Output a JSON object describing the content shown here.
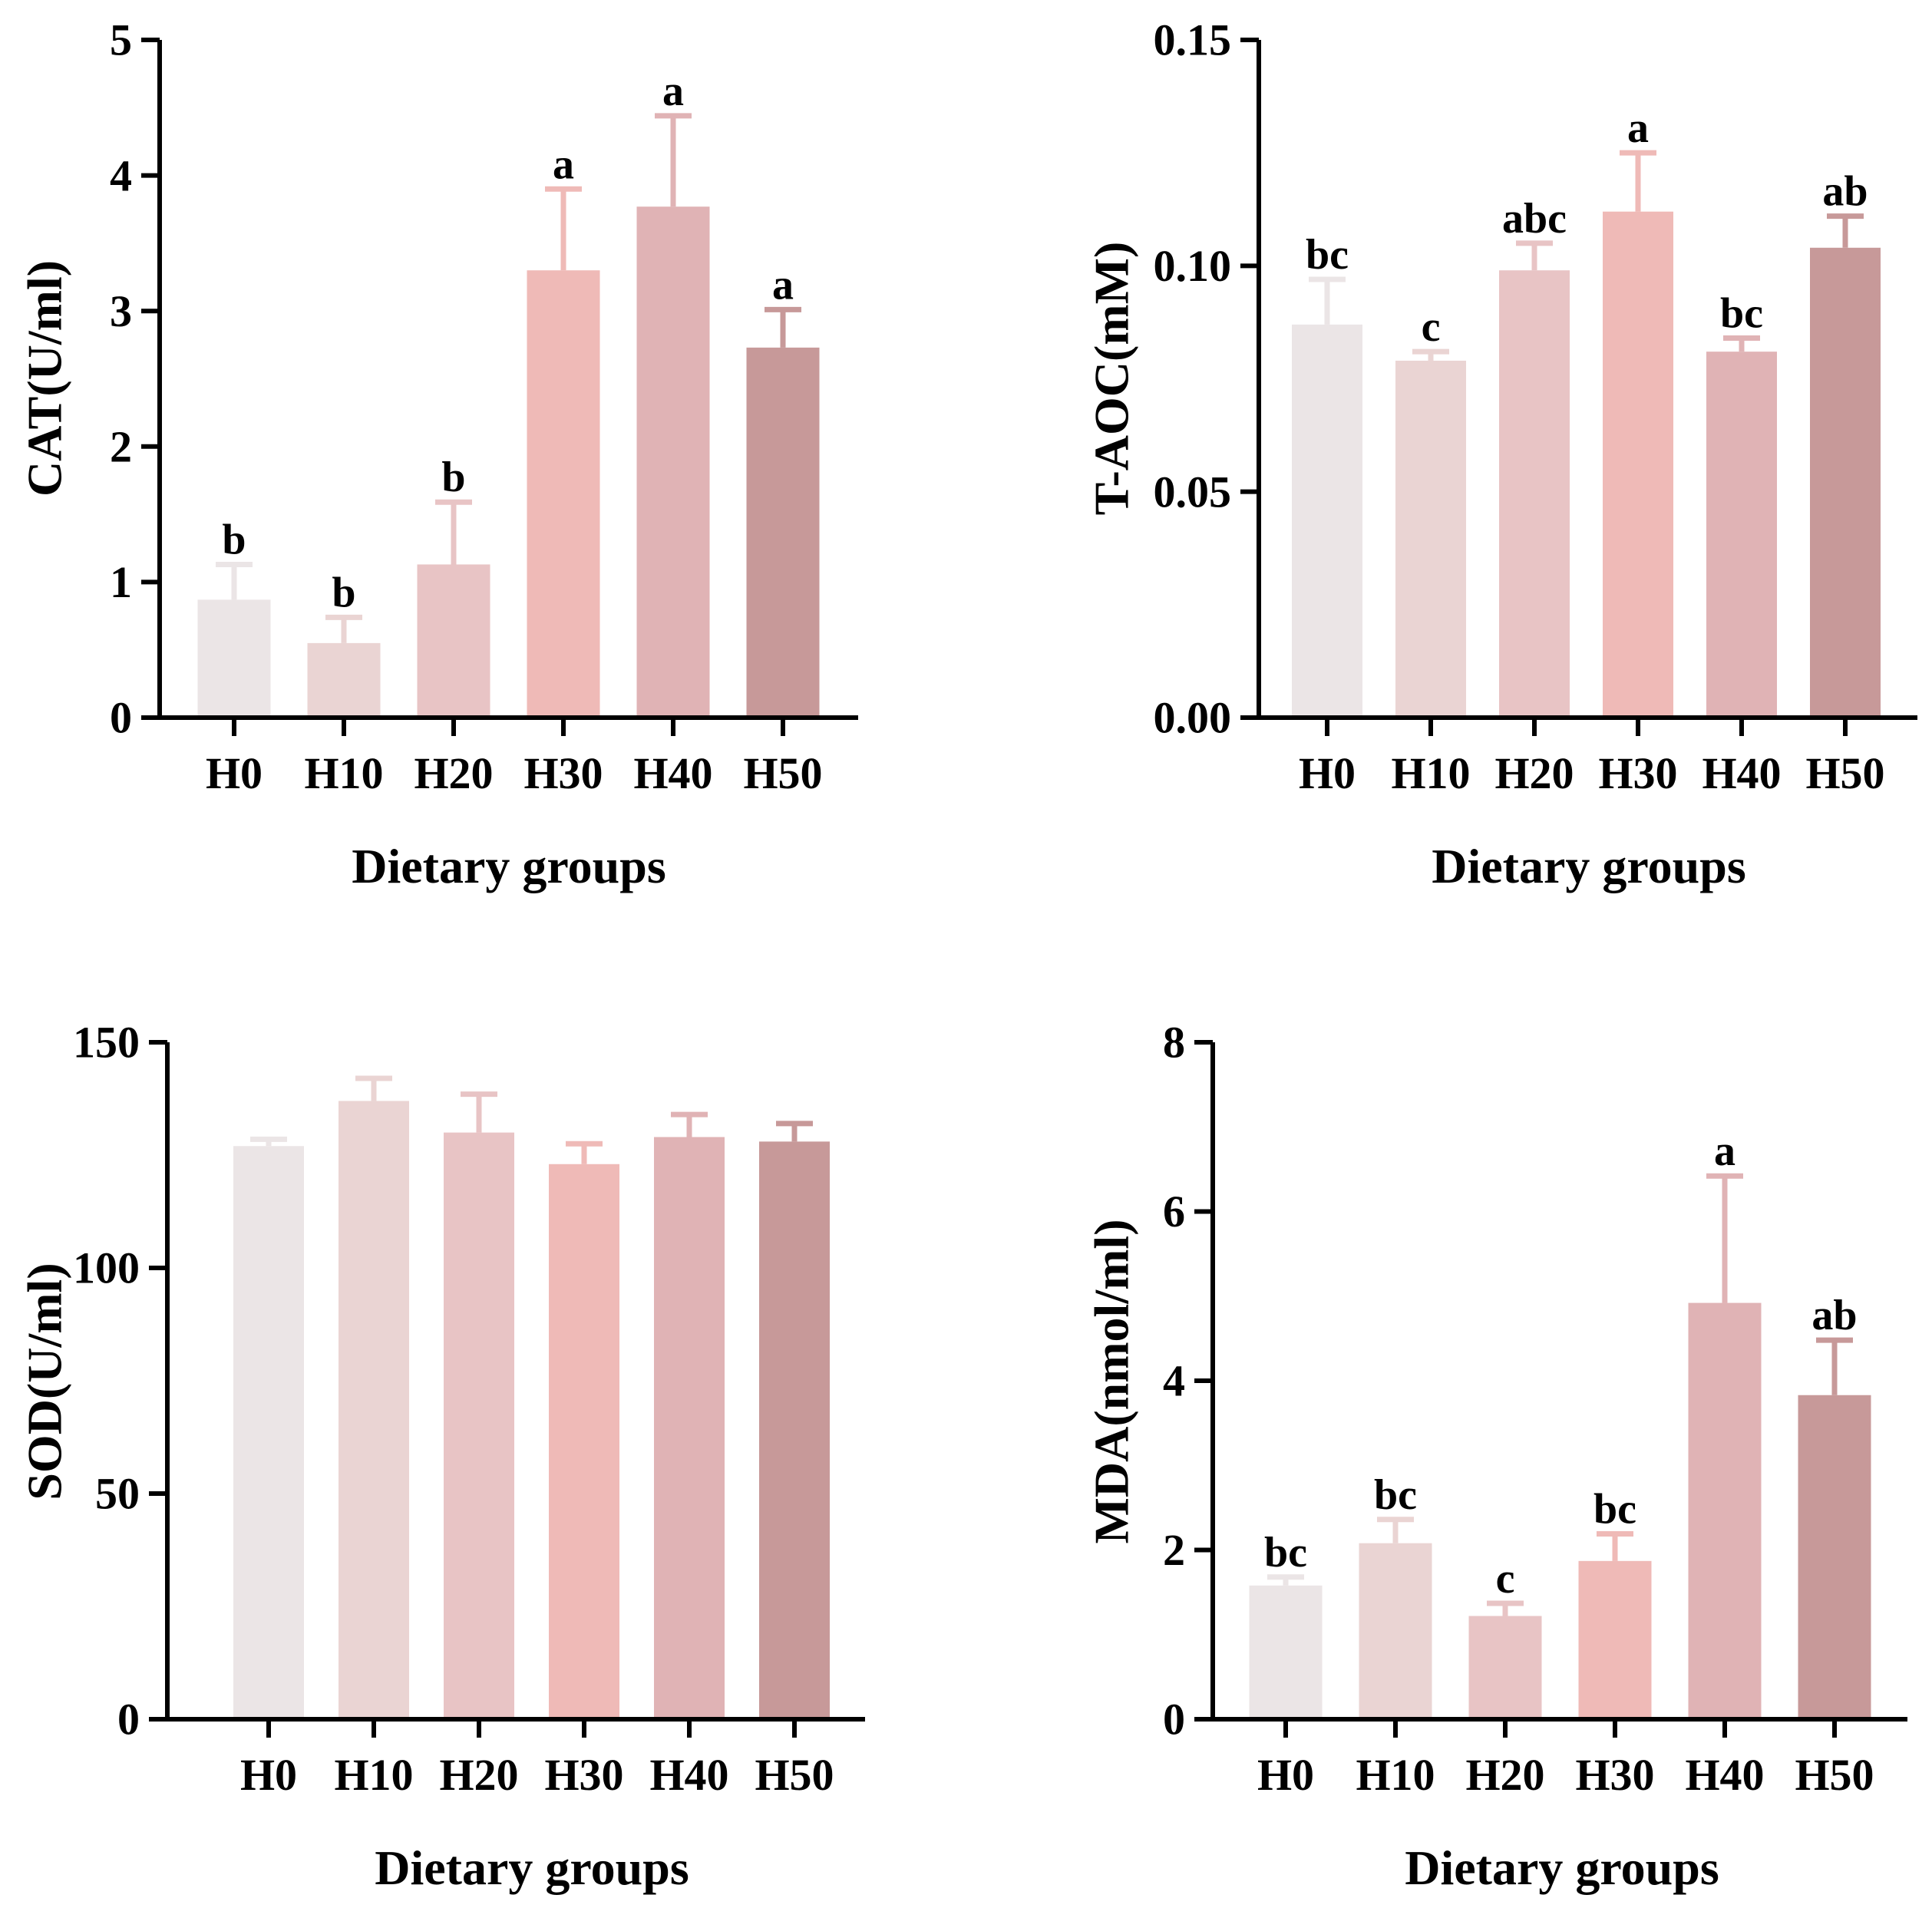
{
  "colors": {
    "axis": "#000000",
    "bars": [
      "#ebe5e6",
      "#ead4d3",
      "#e8c4c5",
      "#efbab7",
      "#e0b3b5",
      "#c79999"
    ],
    "errors": [
      "#ebe5e6",
      "#ead4d3",
      "#e8c4c5",
      "#efbab7",
      "#e0b3b5",
      "#c79999"
    ]
  },
  "chart_data": [
    {
      "type": "bar",
      "title": "",
      "xlabel": "Dietary groups",
      "ylabel": "CAT(U/ml)",
      "categories": [
        "H0",
        "H10",
        "H20",
        "H30",
        "H40",
        "H50"
      ],
      "values": [
        0.87,
        0.55,
        1.13,
        3.3,
        3.77,
        2.73
      ],
      "errors": [
        0.26,
        0.19,
        0.46,
        0.6,
        0.67,
        0.28
      ],
      "letters": [
        "b",
        "b",
        "b",
        "a",
        "a",
        "a"
      ],
      "ylim": [
        0,
        5
      ],
      "yticks": [
        0,
        1,
        2,
        3,
        4,
        5
      ],
      "ytick_labels": [
        "0",
        "1",
        "2",
        "3",
        "4",
        "5"
      ]
    },
    {
      "type": "bar",
      "title": "",
      "xlabel": "Dietary groups",
      "ylabel": "T-AOC(mM)",
      "categories": [
        "H0",
        "H10",
        "H20",
        "H30",
        "H40",
        "H50"
      ],
      "values": [
        0.087,
        0.079,
        0.099,
        0.112,
        0.081,
        0.104
      ],
      "errors": [
        0.01,
        0.002,
        0.006,
        0.013,
        0.003,
        0.007
      ],
      "letters": [
        "bc",
        "c",
        "abc",
        "a",
        "bc",
        "ab"
      ],
      "ylim": [
        0,
        0.15
      ],
      "yticks": [
        0,
        0.05,
        0.1,
        0.15
      ],
      "ytick_labels": [
        "0.00",
        "0.05",
        "0.10",
        "0.15"
      ]
    },
    {
      "type": "bar",
      "title": "",
      "xlabel": "Dietary groups",
      "ylabel": "SOD(U/ml)",
      "categories": [
        "H0",
        "H10",
        "H20",
        "H30",
        "H40",
        "H50"
      ],
      "values": [
        127,
        137,
        130,
        123,
        129,
        128
      ],
      "errors": [
        1.5,
        5,
        8.5,
        4.5,
        5,
        4
      ],
      "letters": [
        "",
        "",
        "",
        "",
        "",
        ""
      ],
      "ylim": [
        0,
        150
      ],
      "yticks": [
        0,
        50,
        100,
        150
      ],
      "ytick_labels": [
        "0",
        "50",
        "100",
        "150"
      ]
    },
    {
      "type": "bar",
      "title": "",
      "xlabel": "Dietary groups",
      "ylabel": "MDA(nmol/ml)",
      "categories": [
        "H0",
        "H10",
        "H20",
        "H30",
        "H40",
        "H50"
      ],
      "values": [
        1.58,
        2.08,
        1.22,
        1.87,
        4.92,
        3.83
      ],
      "errors": [
        0.1,
        0.28,
        0.15,
        0.32,
        1.5,
        0.65
      ],
      "letters": [
        "bc",
        "bc",
        "c",
        "bc",
        "a",
        "ab"
      ],
      "ylim": [
        0,
        8
      ],
      "yticks": [
        0,
        2,
        4,
        6,
        8
      ],
      "ytick_labels": [
        "0",
        "2",
        "4",
        "6",
        "8"
      ]
    }
  ]
}
